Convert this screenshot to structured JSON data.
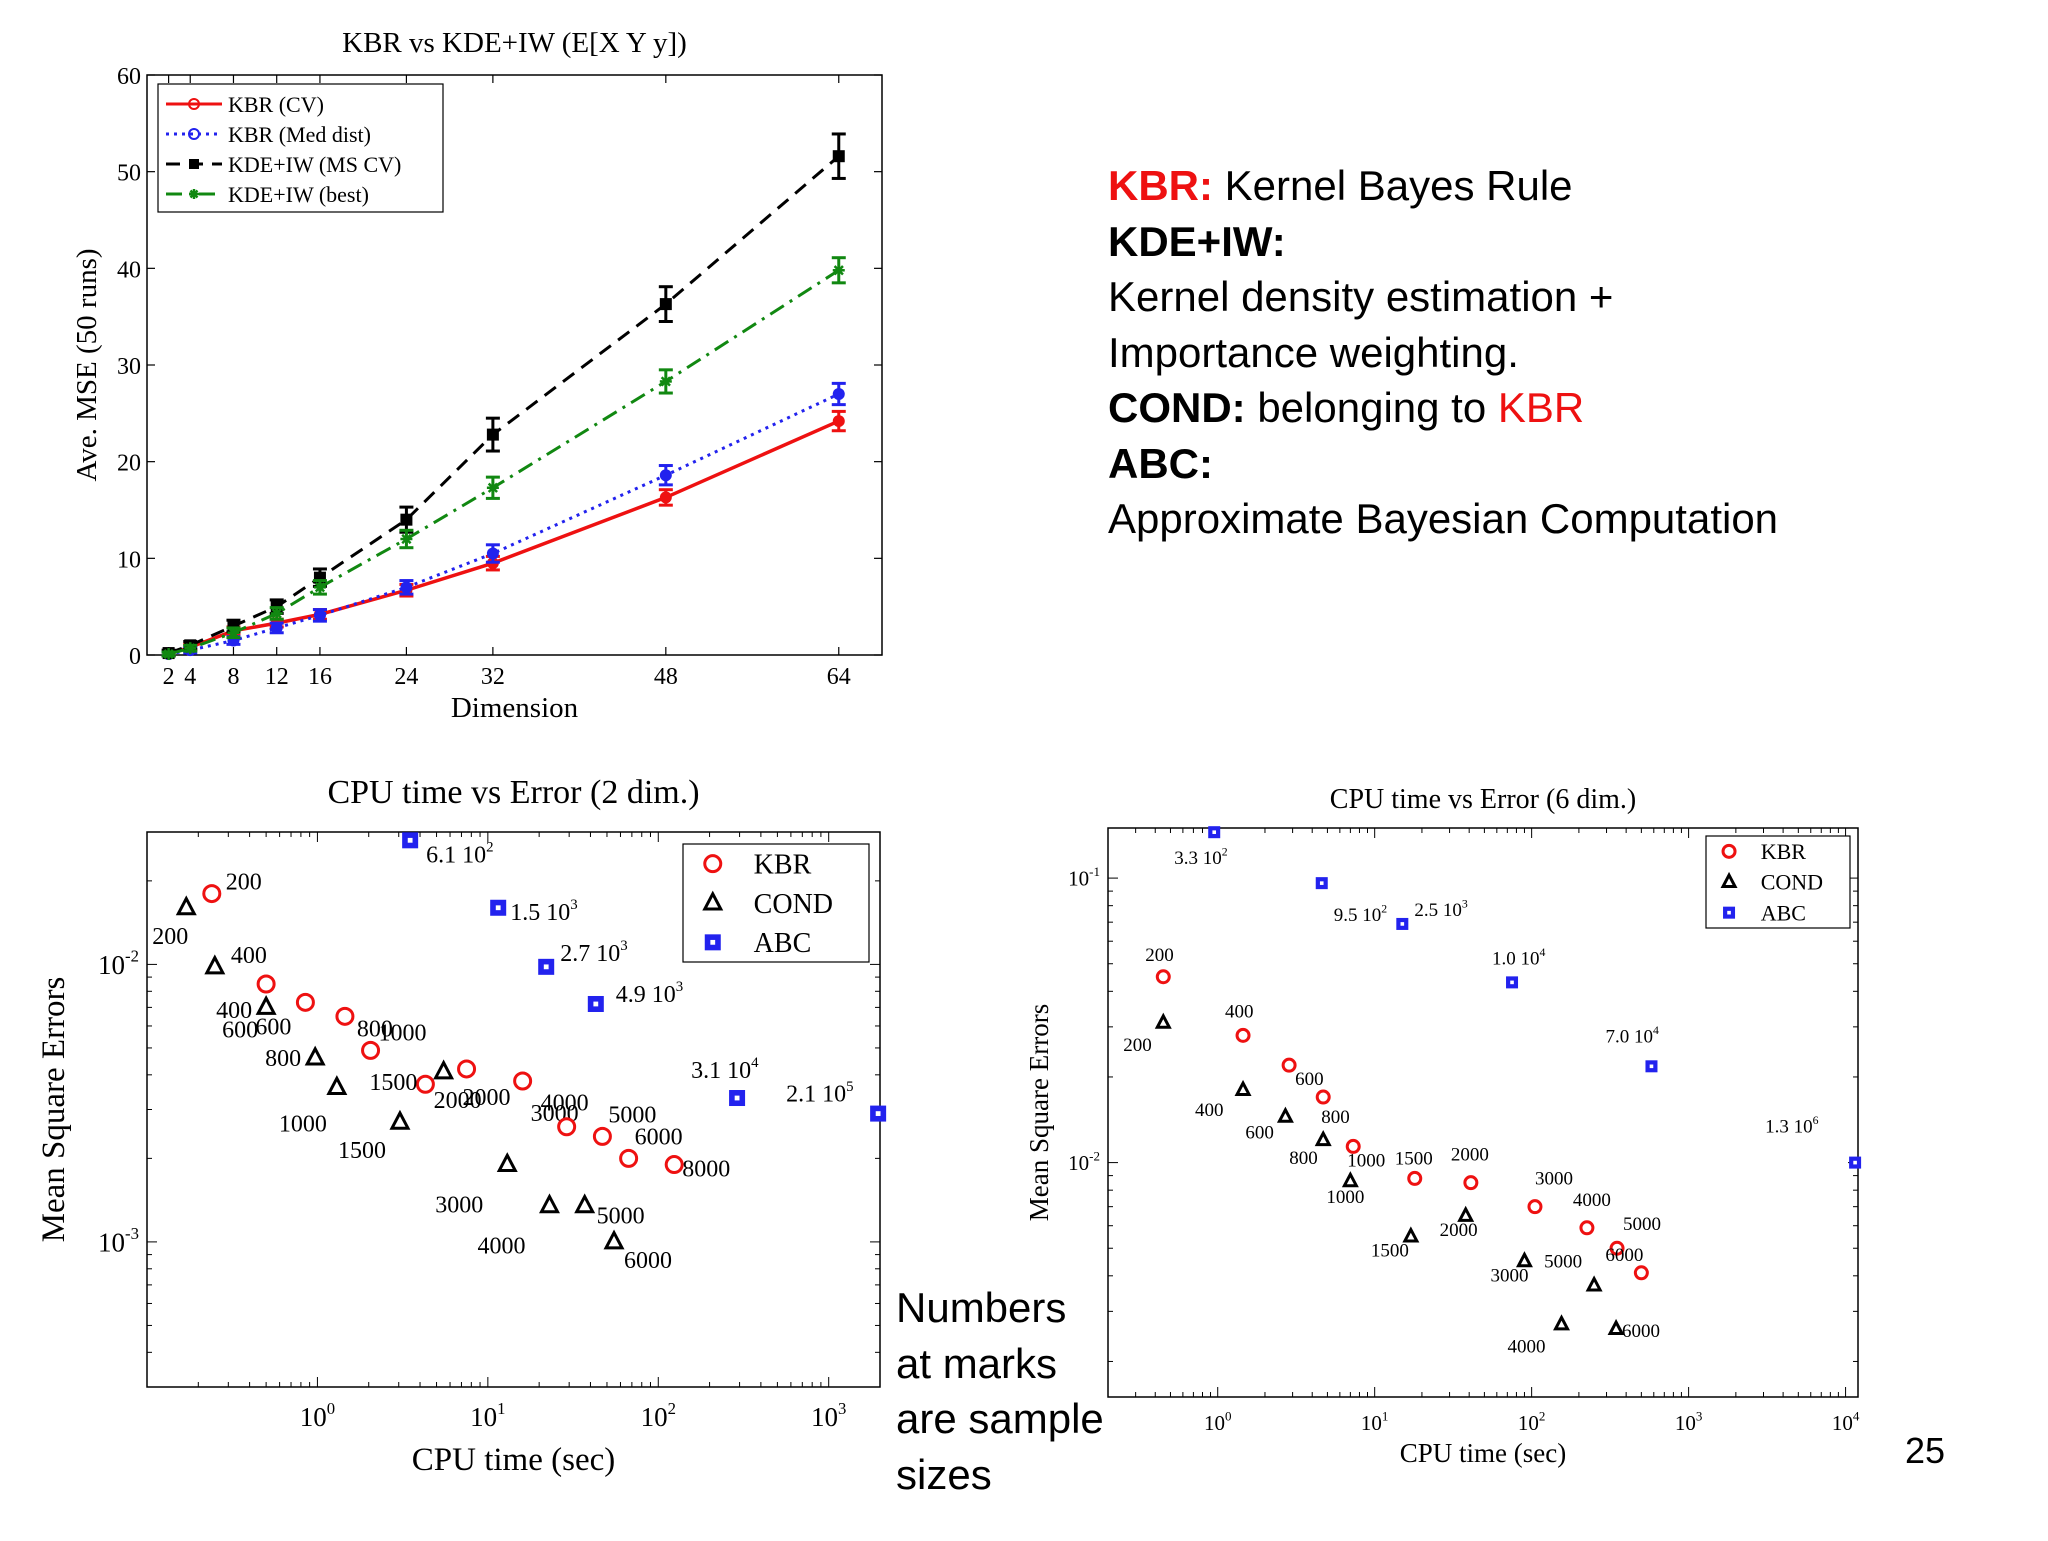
{
  "slide": {
    "definitions": {
      "kbr_key": "KBR:",
      "kbr_text": "Kernel Bayes Rule",
      "kdeiw_key": "KDE+IW:",
      "kdeiw_line1": "Kernel density estimation +",
      "kdeiw_line2": "Importance weighting.",
      "cond_key": "COND:",
      "cond_text": "belonging to",
      "cond_ref": "KBR",
      "abc_key": "ABC:",
      "abc_text": "Approximate Bayesian Computation"
    },
    "note": {
      "line1": "Numbers",
      "line2": "at marks",
      "line3": "are sample",
      "line4": "sizes"
    },
    "page_number": "25",
    "colors": {
      "highlight": "#ee1111"
    }
  },
  "chart_data": [
    {
      "id": "mse-vs-dimension",
      "type": "line",
      "title": "KBR vs KDE+IW (E[X Y y])",
      "xlabel": "Dimension",
      "ylabel": "Ave. MSE (50 runs)",
      "xlim": [
        0,
        68
      ],
      "ylim": [
        0,
        60
      ],
      "x_ticks": [
        "2",
        "4",
        "8",
        "12",
        "16",
        "24",
        "32",
        "48",
        "64"
      ],
      "y_ticks": [
        "0",
        "10",
        "20",
        "30",
        "40",
        "50",
        "60"
      ],
      "legend_position": "top-left",
      "x": [
        2,
        4,
        8,
        12,
        16,
        24,
        32,
        48,
        64
      ],
      "series": [
        {
          "name": "KBR (CV)",
          "color": "#ee1111",
          "line": "solid",
          "marker": "circle",
          "values": [
            0.1,
            0.8,
            2.5,
            3.3,
            4.2,
            6.7,
            9.5,
            16.3,
            24.2
          ],
          "errors": [
            0.2,
            0.3,
            0.4,
            0.4,
            0.5,
            0.6,
            0.7,
            0.8,
            1.0
          ]
        },
        {
          "name": "KBR (Med dist)",
          "color": "#2222ee",
          "line": "dotted",
          "marker": "circle",
          "values": [
            0.1,
            0.5,
            1.5,
            2.8,
            4.1,
            7.0,
            10.5,
            18.6,
            27.0
          ],
          "errors": [
            0.2,
            0.3,
            0.4,
            0.5,
            0.6,
            0.7,
            0.9,
            1.0,
            1.1
          ]
        },
        {
          "name": "KDE+IW (MS CV)",
          "color": "#000000",
          "line": "dashed",
          "marker": "square",
          "values": [
            0.2,
            1.0,
            3.0,
            5.0,
            8.0,
            14.0,
            22.8,
            36.3,
            51.6
          ],
          "errors": [
            0.3,
            0.4,
            0.6,
            0.7,
            0.9,
            1.3,
            1.7,
            1.8,
            2.3
          ]
        },
        {
          "name": "KDE+IW (best)",
          "color": "#118811",
          "line": "dashdot",
          "marker": "star",
          "values": [
            0.1,
            0.7,
            2.3,
            4.3,
            7.0,
            12.0,
            17.3,
            28.3,
            39.8
          ],
          "errors": [
            0.2,
            0.3,
            0.5,
            0.6,
            0.7,
            0.9,
            1.1,
            1.2,
            1.3
          ]
        }
      ]
    },
    {
      "id": "cpu-vs-error-2dim",
      "type": "scatter",
      "title": "CPU time vs Error (2 dim.)",
      "xlabel": "CPU time (sec)",
      "ylabel": "Mean Square Errors",
      "x_scale": "log",
      "y_scale": "log",
      "xlim": [
        0.1,
        2000
      ],
      "ylim": [
        0.0003,
        0.03
      ],
      "x_ticks": [
        {
          "value": 1,
          "base": "10",
          "exp": "0"
        },
        {
          "value": 10,
          "base": "10",
          "exp": "1"
        },
        {
          "value": 100,
          "base": "10",
          "exp": "2"
        },
        {
          "value": 1000,
          "base": "10",
          "exp": "3"
        }
      ],
      "y_ticks": [
        {
          "value": 0.001,
          "base": "10",
          "exp": "-3"
        },
        {
          "value": 0.01,
          "base": "10",
          "exp": "-2"
        }
      ],
      "legend_position": "top-right",
      "series": [
        {
          "name": "KBR",
          "color": "#ee1111",
          "marker": "circle",
          "points": [
            {
              "x": 0.24,
              "y": 0.018,
              "label": "200"
            },
            {
              "x": 0.5,
              "y": 0.0085,
              "label": "400"
            },
            {
              "x": 0.85,
              "y": 0.0073,
              "label": "600"
            },
            {
              "x": 1.45,
              "y": 0.0065,
              "label": "800"
            },
            {
              "x": 2.05,
              "y": 0.0049,
              "label": "1000"
            },
            {
              "x": 4.3,
              "y": 0.0037,
              "label": "1500"
            },
            {
              "x": 7.5,
              "y": 0.0042,
              "label": "2000"
            },
            {
              "x": 16.0,
              "y": 0.0038,
              "label": "3000"
            },
            {
              "x": 29.0,
              "y": 0.0026,
              "label": "4000"
            },
            {
              "x": 47.0,
              "y": 0.0024,
              "label": "5000"
            },
            {
              "x": 67.0,
              "y": 0.002,
              "label": "6000"
            },
            {
              "x": 124.0,
              "y": 0.0019,
              "label": "8000"
            }
          ]
        },
        {
          "name": "COND",
          "color": "#000000",
          "marker": "triangle",
          "points": [
            {
              "x": 0.17,
              "y": 0.016,
              "label": "200"
            },
            {
              "x": 0.25,
              "y": 0.0098,
              "label": "400"
            },
            {
              "x": 0.5,
              "y": 0.007,
              "label": "600"
            },
            {
              "x": 0.97,
              "y": 0.0046,
              "label": "800"
            },
            {
              "x": 1.3,
              "y": 0.0036,
              "label": "1000"
            },
            {
              "x": 3.05,
              "y": 0.0027,
              "label": "1500"
            },
            {
              "x": 5.5,
              "y": 0.0041,
              "label": "2000"
            },
            {
              "x": 13.0,
              "y": 0.0019,
              "label": "3000"
            },
            {
              "x": 23.0,
              "y": 0.00135,
              "label": "4000"
            },
            {
              "x": 37.0,
              "y": 0.00135,
              "label": "5000"
            },
            {
              "x": 55.0,
              "y": 0.001,
              "label": "6000"
            }
          ]
        },
        {
          "name": "ABC",
          "color": "#2222ee",
          "marker": "square",
          "points": [
            {
              "x": 3.5,
              "y": 0.028,
              "label": "6.1",
              "exp": "2"
            },
            {
              "x": 11.5,
              "y": 0.016,
              "label": "1.5",
              "exp": "3"
            },
            {
              "x": 22.0,
              "y": 0.0098,
              "label": "2.7",
              "exp": "3"
            },
            {
              "x": 43.0,
              "y": 0.0072,
              "label": "4.9",
              "exp": "3"
            },
            {
              "x": 290.0,
              "y": 0.0033,
              "label": "3.1",
              "exp": "4"
            },
            {
              "x": 1950.0,
              "y": 0.0029,
              "label": "2.1",
              "exp": "5"
            }
          ]
        }
      ]
    },
    {
      "id": "cpu-vs-error-6dim",
      "type": "scatter",
      "title": "CPU time vs Error (6 dim.)",
      "xlabel": "CPU time (sec)",
      "ylabel": "Mean Square Errors",
      "x_scale": "log",
      "y_scale": "log",
      "xlim": [
        0.2,
        12000
      ],
      "ylim": [
        0.0015,
        0.15
      ],
      "x_ticks": [
        {
          "value": 1,
          "base": "10",
          "exp": "0"
        },
        {
          "value": 10,
          "base": "10",
          "exp": "1"
        },
        {
          "value": 100,
          "base": "10",
          "exp": "2"
        },
        {
          "value": 1000,
          "base": "10",
          "exp": "3"
        },
        {
          "value": 10000,
          "base": "10",
          "exp": "4"
        }
      ],
      "y_ticks": [
        {
          "value": 0.01,
          "base": "10",
          "exp": "-2"
        },
        {
          "value": 0.1,
          "base": "10",
          "exp": "-1"
        }
      ],
      "legend_position": "top-right",
      "series": [
        {
          "name": "KBR",
          "color": "#ee1111",
          "marker": "circle",
          "points": [
            {
              "x": 0.45,
              "y": 0.045,
              "label": "200"
            },
            {
              "x": 1.45,
              "y": 0.028,
              "label": "400"
            },
            {
              "x": 2.85,
              "y": 0.022,
              "label": "600"
            },
            {
              "x": 4.7,
              "y": 0.017,
              "label": "800"
            },
            {
              "x": 7.3,
              "y": 0.0114,
              "label": "1000"
            },
            {
              "x": 18.0,
              "y": 0.0088,
              "label": "1500"
            },
            {
              "x": 41.0,
              "y": 0.0085,
              "label": "2000"
            },
            {
              "x": 105.0,
              "y": 0.007,
              "label": "3000"
            },
            {
              "x": 225.0,
              "y": 0.0059,
              "label": "4000"
            },
            {
              "x": 350.0,
              "y": 0.005,
              "label": "5000"
            },
            {
              "x": 500.0,
              "y": 0.0041,
              "label": "6000"
            }
          ]
        },
        {
          "name": "COND",
          "color": "#000000",
          "marker": "triangle",
          "points": [
            {
              "x": 0.45,
              "y": 0.031,
              "label": "200"
            },
            {
              "x": 1.45,
              "y": 0.018,
              "label": "400"
            },
            {
              "x": 2.7,
              "y": 0.0145,
              "label": "600"
            },
            {
              "x": 4.7,
              "y": 0.012,
              "label": "800"
            },
            {
              "x": 7.0,
              "y": 0.0086,
              "label": "1000"
            },
            {
              "x": 17.0,
              "y": 0.0055,
              "label": "1500"
            },
            {
              "x": 38.0,
              "y": 0.0065,
              "label": "2000"
            },
            {
              "x": 90.0,
              "y": 0.0045,
              "label": "3000"
            },
            {
              "x": 155.0,
              "y": 0.0027,
              "label": "4000"
            },
            {
              "x": 250.0,
              "y": 0.0037,
              "label": "5000"
            },
            {
              "x": 345.0,
              "y": 0.0026,
              "label": "6000"
            }
          ]
        },
        {
          "name": "ABC",
          "color": "#2222ee",
          "marker": "square",
          "points": [
            {
              "x": 0.95,
              "y": 0.145,
              "label": "3.3",
              "exp": "2"
            },
            {
              "x": 4.6,
              "y": 0.096,
              "label": "9.5",
              "exp": "2"
            },
            {
              "x": 15.0,
              "y": 0.069,
              "label": "2.5",
              "exp": "3"
            },
            {
              "x": 75.0,
              "y": 0.043,
              "label": "1.0",
              "exp": "4"
            },
            {
              "x": 580.0,
              "y": 0.0218,
              "label": "7.0",
              "exp": "4"
            },
            {
              "x": 11500.0,
              "y": 0.01,
              "label": "1.3",
              "exp": "6"
            }
          ]
        }
      ]
    }
  ]
}
